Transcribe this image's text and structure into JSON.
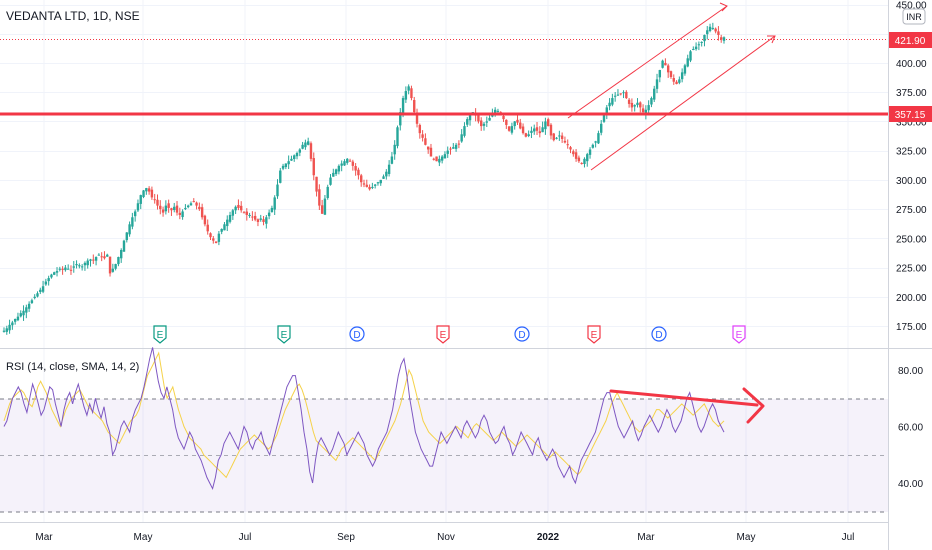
{
  "header": {
    "symbol_title": "VEDANTA LTD, 1D, NSE",
    "currency_badge": "INR"
  },
  "rsi_panel": {
    "title": "RSI (14, close, SMA, 14, 2)"
  },
  "price_badges": {
    "last_price": "421.90",
    "support_line": "357.15"
  },
  "colors": {
    "up_candle": "#26a69a",
    "down_candle": "#ef5350",
    "support_line": "#f23645",
    "channel": "#f23645",
    "rsi_line": "#7e57c2",
    "rsi_sma": "#f5d24a",
    "earnings_green": "#089981",
    "earnings_red": "#f23645",
    "dividend": "#2962ff",
    "earnings_future": "#e040fb"
  },
  "event_markers": [
    {
      "label": "E",
      "type": "earnings-green"
    },
    {
      "label": "E",
      "type": "earnings-green"
    },
    {
      "label": "D",
      "type": "dividend"
    },
    {
      "label": "E",
      "type": "earnings-red"
    },
    {
      "label": "D",
      "type": "dividend"
    },
    {
      "label": "E",
      "type": "earnings-red"
    },
    {
      "label": "D",
      "type": "dividend"
    },
    {
      "label": "E",
      "type": "earnings-future"
    }
  ],
  "chart_data": [
    {
      "type": "candlestick",
      "title": "VEDANTA LTD, 1D, NSE",
      "x_ticks": [
        "Mar",
        "May",
        "Jul",
        "Sep",
        "Nov",
        "2022",
        "Mar",
        "May",
        "Jul"
      ],
      "y_ticks": [
        "175.00",
        "200.00",
        "225.00",
        "250.00",
        "275.00",
        "300.00",
        "325.00",
        "350.00",
        "375.00",
        "400.00",
        "450.00"
      ],
      "ylim": [
        163,
        451
      ],
      "last_value": 421.9,
      "horizontal_support": 357.15,
      "close_series_daily": [
        171,
        173,
        176,
        178,
        181,
        183,
        186,
        188,
        191,
        194,
        197,
        200,
        203,
        206,
        209,
        213,
        216,
        219,
        221,
        222,
        224,
        223,
        225,
        224,
        223,
        226,
        228,
        227,
        226,
        229,
        231,
        232,
        231,
        234,
        236,
        234,
        233,
        236,
        220,
        224,
        228,
        234,
        240,
        248,
        255,
        262,
        268,
        273,
        280,
        287,
        291,
        293,
        290,
        285,
        283,
        278,
        275,
        272,
        278,
        276,
        274,
        277,
        272,
        270,
        273,
        276,
        278,
        280,
        281,
        278,
        275,
        268,
        262,
        256,
        251,
        248,
        246,
        254,
        258,
        262,
        266,
        270,
        274,
        277,
        276,
        274,
        272,
        270,
        270,
        268,
        266,
        264,
        267,
        264,
        268,
        272,
        276,
        285,
        296,
        308,
        312,
        314,
        316,
        318,
        321,
        323,
        326,
        330,
        332,
        333,
        318,
        304,
        290,
        278,
        271,
        284,
        294,
        302,
        306,
        309,
        312,
        314,
        316,
        318,
        316,
        312,
        308,
        304,
        298,
        296,
        294,
        292,
        294,
        296,
        298,
        300,
        303,
        307,
        313,
        320,
        330,
        345,
        358,
        370,
        376,
        380,
        370,
        358,
        348,
        340,
        336,
        330,
        326,
        320,
        318,
        316,
        318,
        320,
        322,
        325,
        326,
        328,
        330,
        331,
        339,
        346,
        352,
        356,
        358,
        355,
        350,
        346,
        348,
        350,
        353,
        356,
        360,
        359,
        356,
        352,
        347,
        342,
        346,
        350,
        349,
        344,
        340,
        337,
        339,
        342,
        344,
        342,
        340,
        345,
        350,
        346,
        338,
        334,
        336,
        338,
        335,
        332,
        330,
        326,
        322,
        318,
        316,
        314,
        318,
        322,
        326,
        330,
        333,
        340,
        348,
        356,
        362,
        366,
        370,
        372,
        373,
        374,
        375,
        370,
        365,
        362,
        364,
        366,
        362,
        358,
        360,
        364,
        370,
        378,
        386,
        394,
        402,
        398,
        392,
        388,
        384,
        382,
        386,
        392,
        398,
        404,
        410,
        412,
        414,
        416,
        418,
        424,
        428,
        431,
        430,
        427,
        424,
        420,
        422
      ]
    },
    {
      "type": "line",
      "title": "RSI (14, close, SMA, 14, 2)",
      "y_ticks": [
        "40.00",
        "60.00",
        "80.00"
      ],
      "ylim": [
        27,
        87
      ],
      "bands": [
        30,
        50,
        70
      ],
      "series": [
        {
          "values": [
            62,
            65,
            68,
            70,
            71,
            72,
            73,
            72,
            70,
            68,
            67,
            70,
            74,
            76,
            74,
            72,
            69,
            66,
            64,
            62,
            60,
            63,
            66,
            68,
            70,
            71,
            72,
            73,
            71,
            69,
            67,
            66,
            65,
            64,
            63,
            62,
            60,
            58,
            57,
            56,
            55,
            54,
            56,
            58,
            60,
            62,
            63,
            64,
            66,
            70,
            74,
            78,
            80,
            82,
            84,
            86,
            80,
            74,
            70,
            72,
            74,
            70,
            66,
            63,
            60,
            58,
            56,
            55,
            54,
            53,
            52,
            50,
            49,
            48,
            47,
            46,
            45,
            44,
            43,
            42,
            44,
            46,
            48,
            50,
            52,
            53,
            54,
            55,
            56,
            57,
            56,
            55,
            54,
            53,
            52,
            53,
            55,
            57,
            60,
            63,
            66,
            68,
            70,
            72,
            74,
            75,
            73,
            70,
            66,
            62,
            58,
            55,
            54,
            53,
            52,
            51,
            50,
            49,
            48,
            50,
            52,
            53,
            54,
            55,
            56,
            55,
            54,
            53,
            52,
            51,
            50,
            49,
            48,
            50,
            52,
            54,
            56,
            58,
            60,
            62,
            65,
            68,
            72,
            76,
            80,
            78,
            74,
            70,
            66,
            62,
            60,
            58,
            57,
            56,
            55,
            54,
            55,
            56,
            57,
            58,
            59,
            60,
            59,
            58,
            57,
            56,
            58,
            60,
            61,
            60,
            59,
            58,
            57,
            56,
            55,
            56,
            57,
            58,
            57,
            56,
            55,
            54,
            53,
            54,
            55,
            56,
            57,
            56,
            55,
            54,
            53,
            52,
            51,
            50,
            49,
            50,
            51,
            50,
            49,
            48,
            47,
            46,
            45,
            44,
            43,
            44,
            46,
            48,
            50,
            52,
            54,
            56,
            58,
            60,
            62,
            65,
            68,
            70,
            72,
            70,
            68,
            66,
            64,
            62,
            60,
            59,
            58,
            59,
            60,
            61,
            62,
            64,
            66,
            66,
            65,
            64,
            63,
            64,
            65,
            66,
            67,
            68,
            67,
            66,
            65,
            64,
            65,
            66,
            67,
            68,
            66,
            64,
            62,
            61,
            60,
            61,
            62
          ],
          "color": "#f5d24a"
        },
        {
          "values": [
            60,
            62,
            66,
            70,
            72,
            74,
            72,
            68,
            65,
            70,
            75,
            72,
            68,
            64,
            66,
            70,
            74,
            73,
            68,
            64,
            60,
            66,
            70,
            72,
            68,
            72,
            75,
            71,
            67,
            64,
            68,
            65,
            70,
            66,
            63,
            67,
            61,
            58,
            50,
            52,
            56,
            60,
            62,
            60,
            58,
            63,
            66,
            68,
            70,
            74,
            79,
            84,
            88,
            82,
            76,
            72,
            70,
            74,
            70,
            66,
            60,
            56,
            54,
            52,
            55,
            58,
            56,
            52,
            50,
            48,
            45,
            42,
            40,
            38,
            42,
            48,
            50,
            54,
            56,
            58,
            56,
            54,
            52,
            56,
            60,
            58,
            54,
            52,
            55,
            56,
            58,
            54,
            52,
            50,
            54,
            58,
            62,
            66,
            70,
            74,
            76,
            78,
            78,
            72,
            66,
            58,
            52,
            44,
            40,
            48,
            54,
            56,
            54,
            52,
            50,
            52,
            55,
            58,
            56,
            54,
            50,
            52,
            54,
            56,
            58,
            56,
            54,
            50,
            48,
            46,
            48,
            52,
            54,
            56,
            58,
            62,
            66,
            72,
            78,
            82,
            84,
            78,
            70,
            64,
            58,
            55,
            52,
            50,
            48,
            46,
            46,
            50,
            54,
            58,
            56,
            54,
            56,
            58,
            60,
            58,
            56,
            60,
            62,
            60,
            58,
            56,
            58,
            62,
            64,
            62,
            58,
            56,
            54,
            55,
            58,
            60,
            56,
            54,
            50,
            52,
            55,
            58,
            56,
            54,
            52,
            50,
            54,
            56,
            52,
            50,
            48,
            50,
            52,
            50,
            46,
            44,
            42,
            44,
            46,
            42,
            40,
            44,
            48,
            50,
            52,
            54,
            56,
            58,
            62,
            66,
            70,
            72,
            72,
            68,
            64,
            60,
            58,
            56,
            58,
            60,
            62,
            58,
            55,
            57,
            60,
            62,
            64,
            62,
            60,
            58,
            60,
            63,
            66,
            64,
            60,
            58,
            60,
            62,
            66,
            70,
            72,
            68,
            64,
            60,
            58,
            60,
            63,
            66,
            68,
            66,
            62,
            60,
            58
          ],
          "color": "#7e57c2"
        }
      ]
    }
  ]
}
